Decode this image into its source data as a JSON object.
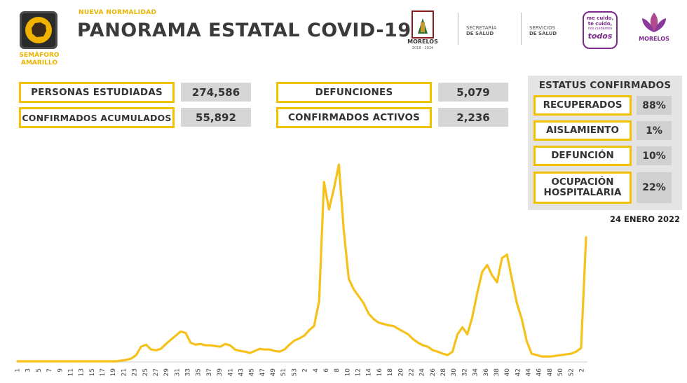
{
  "header": {
    "semaforo_label": "SEMÁFORO AMARILLO",
    "subtitle": "NUEVA NORMALIDAD",
    "title": "PANORAMA ESTATAL COVID-19"
  },
  "logos": {
    "morelos": "MORELOS",
    "morelos_years": "2018 - 2024",
    "secretaria_line1": "SECRETARÍA",
    "secretaria_line2": "DE SALUD",
    "servicios_line1": "SERVICIOS",
    "servicios_line2": "DE SALUD",
    "campaign_line1": "me cuido,",
    "campaign_line2": "te cuido,",
    "campaign_line3": "nos cuidamos",
    "campaign_line4": "todos",
    "morelos2": "MORELOS"
  },
  "stats": {
    "personas_label": "PERSONAS ESTUDIADAS",
    "personas_value": "274,586",
    "confirmados_label": "CONFIRMADOS ACUMULADOS",
    "confirmados_value": "55,892",
    "defunciones_label": "DEFUNCIONES",
    "defunciones_value": "5,079",
    "activos_label": "CONFIRMADOS ACTIVOS",
    "activos_value": "2,236"
  },
  "status": {
    "title": "ESTATUS CONFIRMADOS",
    "recuperados_label": "RECUPERADOS",
    "recuperados_value": "88%",
    "aislamiento_label": "AISLAMIENTO",
    "aislamiento_value": "1%",
    "defuncion_label": "DEFUNCIÓN",
    "defuncion_value": "10%",
    "ocupacion_label_1": "OCUPACIÓN",
    "ocupacion_label_2": "HOSPITALARIA",
    "ocupacion_value": "22%"
  },
  "date": "24 ENERO 2022",
  "colors": {
    "accent": "#f2c200",
    "line": "#f5c11a",
    "panel": "#e4e4e4"
  },
  "chart_data": {
    "type": "line",
    "title": "",
    "xlabel": "",
    "ylabel": "",
    "tick_labels": [
      "1",
      "3",
      "5",
      "7",
      "9",
      "11",
      "13",
      "15",
      "17",
      "19",
      "21",
      "23",
      "25",
      "27",
      "29",
      "31",
      "33",
      "35",
      "37",
      "39",
      "41",
      "43",
      "45",
      "47",
      "49",
      "51",
      "53",
      "2",
      "4",
      "6",
      "8",
      "10",
      "12",
      "14",
      "16",
      "18",
      "20",
      "22",
      "24",
      "26",
      "28",
      "30",
      "32",
      "34",
      "36",
      "38",
      "40",
      "42",
      "44",
      "46",
      "48",
      "50",
      "52",
      "2"
    ],
    "ylim": [
      0,
      290
    ],
    "values": [
      1,
      1,
      1,
      1,
      1,
      1,
      1,
      1,
      1,
      1,
      1,
      1,
      1,
      1,
      1,
      1,
      1,
      1,
      1,
      1,
      1,
      2,
      3,
      5,
      10,
      22,
      25,
      18,
      17,
      19,
      26,
      32,
      38,
      44,
      42,
      28,
      25,
      26,
      24,
      24,
      23,
      22,
      26,
      24,
      18,
      16,
      15,
      13,
      16,
      19,
      18,
      18,
      16,
      15,
      18,
      25,
      31,
      34,
      38,
      46,
      52,
      88,
      260,
      220,
      250,
      285,
      190,
      120,
      105,
      95,
      85,
      70,
      62,
      57,
      55,
      53,
      52,
      48,
      44,
      40,
      33,
      28,
      24,
      22,
      17,
      15,
      12,
      10,
      15,
      40,
      50,
      40,
      65,
      100,
      130,
      140,
      125,
      115,
      150,
      155,
      120,
      85,
      62,
      30,
      12,
      10,
      8,
      8,
      8,
      9,
      10,
      11,
      12,
      15,
      20,
      180
    ]
  }
}
